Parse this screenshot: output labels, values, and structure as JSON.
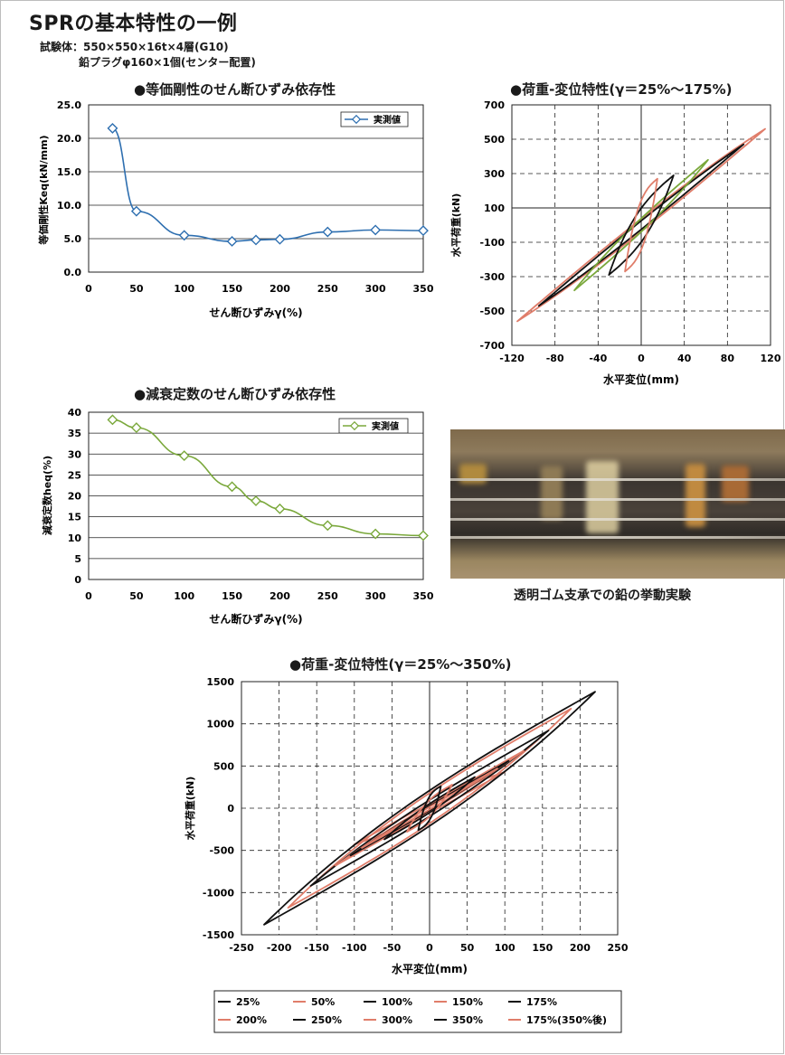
{
  "header": {
    "title": "SPRの基本特性の一例",
    "specimen": "試験体：550×550×16t×4層(G10)",
    "plug": "鉛プラグφ160×1個(センター配置)"
  },
  "photo": {
    "caption": "透明ゴム支承での鉛の挙動実験"
  },
  "colors": {
    "blue": "#2e6fb0",
    "green": "#7aa83b",
    "salmon": "#e07d6a",
    "black": "#111111"
  },
  "chart_data": [
    {
      "id": "keq",
      "type": "line",
      "title": "●等価剛性のせん断ひずみ依存性",
      "xlabel": "せん断ひずみγ(%)",
      "ylabel": "等価剛性Keq(kN/mm)",
      "xlim": [
        0,
        350
      ],
      "ylim": [
        0,
        25
      ],
      "xticks": [
        "0",
        "50",
        "100",
        "150",
        "200",
        "250",
        "300",
        "350"
      ],
      "yticks": [
        "0.0",
        "5.0",
        "10.0",
        "15.0",
        "20.0",
        "25.0"
      ],
      "legend": "実測値",
      "grid": "horizontal",
      "series": [
        {
          "name": "実測値",
          "x": [
            25,
            50,
            100,
            150,
            175,
            200,
            250,
            300,
            350
          ],
          "y": [
            21.5,
            9.1,
            5.5,
            4.6,
            4.8,
            4.9,
            6.0,
            6.3,
            6.2
          ]
        }
      ]
    },
    {
      "id": "heq",
      "type": "line",
      "title": "●減衰定数のせん断ひずみ依存性",
      "xlabel": "せん断ひずみγ(%)",
      "ylabel": "減衰定数heq(%)",
      "xlim": [
        0,
        350
      ],
      "ylim": [
        0,
        40
      ],
      "xticks": [
        "0",
        "50",
        "100",
        "150",
        "200",
        "250",
        "300",
        "350"
      ],
      "yticks": [
        "0",
        "5",
        "10",
        "15",
        "20",
        "25",
        "30",
        "35",
        "40"
      ],
      "legend": "実測値",
      "grid": "horizontal",
      "series": [
        {
          "name": "実測値",
          "x": [
            25,
            50,
            100,
            150,
            175,
            200,
            250,
            300,
            350
          ],
          "y": [
            38.2,
            36.3,
            29.6,
            22.2,
            18.8,
            16.9,
            12.9,
            10.9,
            10.5
          ]
        }
      ]
    },
    {
      "id": "hyst175",
      "type": "line",
      "title": "●荷重-変位特性(γ＝25%〜175%)",
      "xlabel": "水平変位(mm)",
      "ylabel": "水平荷重(kN)",
      "xlim": [
        -120,
        120
      ],
      "ylim": [
        -700,
        700
      ],
      "xticks": [
        "-120",
        "-80",
        "-40",
        "0",
        "40",
        "80",
        "120"
      ],
      "yticks": [
        "-700",
        "-500",
        "-300",
        "-100",
        "100",
        "300",
        "500",
        "700"
      ],
      "grid": "dashed",
      "loops": [
        {
          "amp": 15,
          "peak": 270,
          "color": "#e07d6a"
        },
        {
          "amp": 30,
          "peak": 290,
          "color": "#111111"
        },
        {
          "amp": 62,
          "peak": 380,
          "color": "#7aa83b"
        },
        {
          "amp": 95,
          "peak": 470,
          "color": "#111111"
        },
        {
          "amp": 115,
          "peak": 560,
          "color": "#e07d6a"
        }
      ]
    },
    {
      "id": "hyst350",
      "type": "line",
      "title": "●荷重-変位特性(γ＝25%〜350%)",
      "xlabel": "水平変位(mm)",
      "ylabel": "水平荷重(kN)",
      "xlim": [
        -250,
        250
      ],
      "ylim": [
        -1500,
        1500
      ],
      "xticks": [
        "-250",
        "-200",
        "-150",
        "-100",
        "-50",
        "0",
        "50",
        "100",
        "150",
        "200",
        "250"
      ],
      "yticks": [
        "-1500",
        "-1000",
        "-500",
        "0",
        "500",
        "1000",
        "1500"
      ],
      "grid": "dashed",
      "legend_entries": [
        {
          "label": "25%",
          "color": "#111111"
        },
        {
          "label": "50%",
          "color": "#e07d6a"
        },
        {
          "label": "100%",
          "color": "#111111"
        },
        {
          "label": "150%",
          "color": "#e07d6a"
        },
        {
          "label": "175%",
          "color": "#111111"
        },
        {
          "label": "200%",
          "color": "#e07d6a"
        },
        {
          "label": "250%",
          "color": "#111111"
        },
        {
          "label": "300%",
          "color": "#e07d6a"
        },
        {
          "label": "350%",
          "color": "#111111"
        },
        {
          "label": "175%(350%後)",
          "color": "#e07d6a"
        }
      ],
      "loops": [
        {
          "amp": 15,
          "peak": 260,
          "color": "#111111"
        },
        {
          "amp": 30,
          "peak": 280,
          "color": "#e07d6a"
        },
        {
          "amp": 60,
          "peak": 370,
          "color": "#111111"
        },
        {
          "amp": 90,
          "peak": 470,
          "color": "#e07d6a"
        },
        {
          "amp": 105,
          "peak": 560,
          "color": "#111111"
        },
        {
          "amp": 125,
          "peak": 680,
          "color": "#e07d6a"
        },
        {
          "amp": 158,
          "peak": 920,
          "color": "#111111"
        },
        {
          "amp": 188,
          "peak": 1180,
          "color": "#e07d6a"
        },
        {
          "amp": 220,
          "peak": 1380,
          "color": "#111111"
        },
        {
          "amp": 100,
          "peak": 430,
          "color": "#e07d6a"
        }
      ]
    }
  ]
}
